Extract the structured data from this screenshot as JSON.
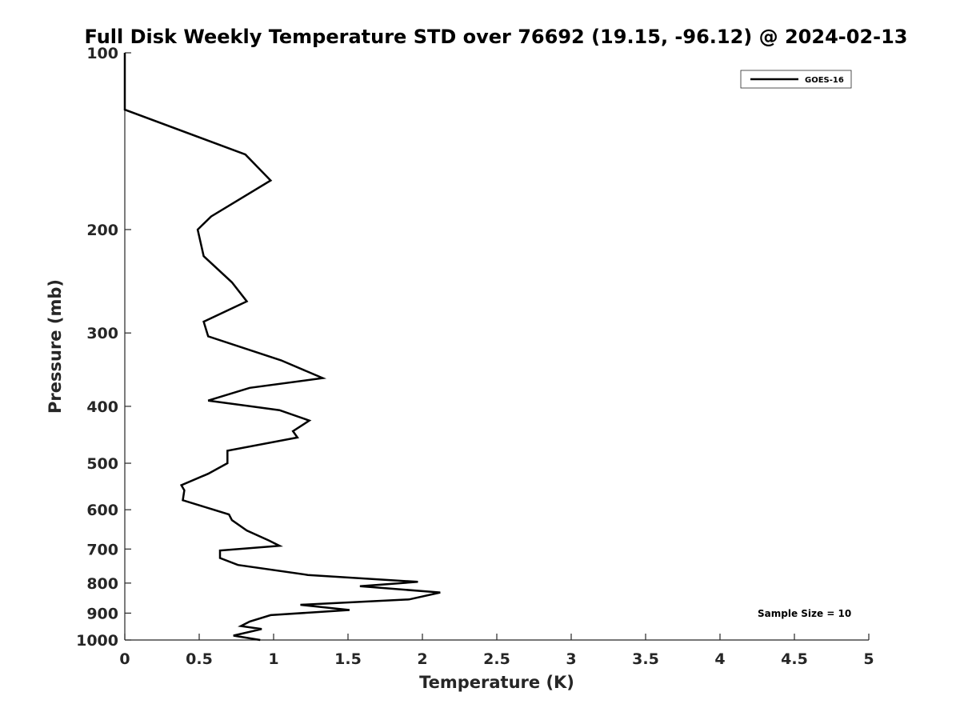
{
  "chart_data": {
    "type": "line",
    "title": "Full Disk Weekly Temperature STD over 76692 (19.15, -96.12) @ 2024-02-13",
    "xlabel": "Temperature (K)",
    "ylabel": "Pressure (mb)",
    "xlim": [
      0,
      5
    ],
    "ylim": [
      1000,
      100
    ],
    "y_scale": "log",
    "y_reversed": true,
    "grid": false,
    "x_ticks": [
      "0",
      "0.5",
      "1",
      "1.5",
      "2",
      "2.5",
      "3",
      "3.5",
      "4",
      "4.5",
      "5"
    ],
    "y_ticks": [
      "100",
      "200",
      "300",
      "400",
      "500",
      "600",
      "700",
      "800",
      "900",
      "1000"
    ],
    "legend": {
      "position": "top-right",
      "entries": [
        "GOES-16"
      ]
    },
    "annotation": "Sample Size = 10",
    "line_color": "#000000",
    "series": [
      {
        "name": "GOES-16",
        "points": [
          [
            0.0,
            100
          ],
          [
            0.0,
            125
          ],
          [
            0.81,
            149
          ],
          [
            0.98,
            165
          ],
          [
            0.58,
            190
          ],
          [
            0.49,
            200
          ],
          [
            0.53,
            222
          ],
          [
            0.72,
            246
          ],
          [
            0.82,
            265
          ],
          [
            0.53,
            287
          ],
          [
            0.56,
            304
          ],
          [
            1.05,
            334
          ],
          [
            1.33,
            358
          ],
          [
            0.84,
            372
          ],
          [
            0.56,
            391
          ],
          [
            1.04,
            406
          ],
          [
            1.24,
            423
          ],
          [
            1.13,
            441
          ],
          [
            1.16,
            452
          ],
          [
            0.69,
            476
          ],
          [
            0.69,
            500
          ],
          [
            0.56,
            521
          ],
          [
            0.38,
            545
          ],
          [
            0.4,
            556
          ],
          [
            0.39,
            578
          ],
          [
            0.7,
            611
          ],
          [
            0.72,
            625
          ],
          [
            0.82,
            651
          ],
          [
            0.97,
            677
          ],
          [
            1.04,
            691
          ],
          [
            0.64,
            704
          ],
          [
            0.64,
            725
          ],
          [
            0.76,
            745
          ],
          [
            1.23,
            775
          ],
          [
            1.97,
            796
          ],
          [
            1.58,
            810
          ],
          [
            2.12,
            830
          ],
          [
            1.91,
            853
          ],
          [
            1.18,
            871
          ],
          [
            1.51,
            889
          ],
          [
            0.98,
            907
          ],
          [
            0.84,
            930
          ],
          [
            0.78,
            947
          ],
          [
            0.92,
            958
          ],
          [
            0.73,
            983
          ],
          [
            0.91,
            1000
          ]
        ]
      }
    ]
  }
}
